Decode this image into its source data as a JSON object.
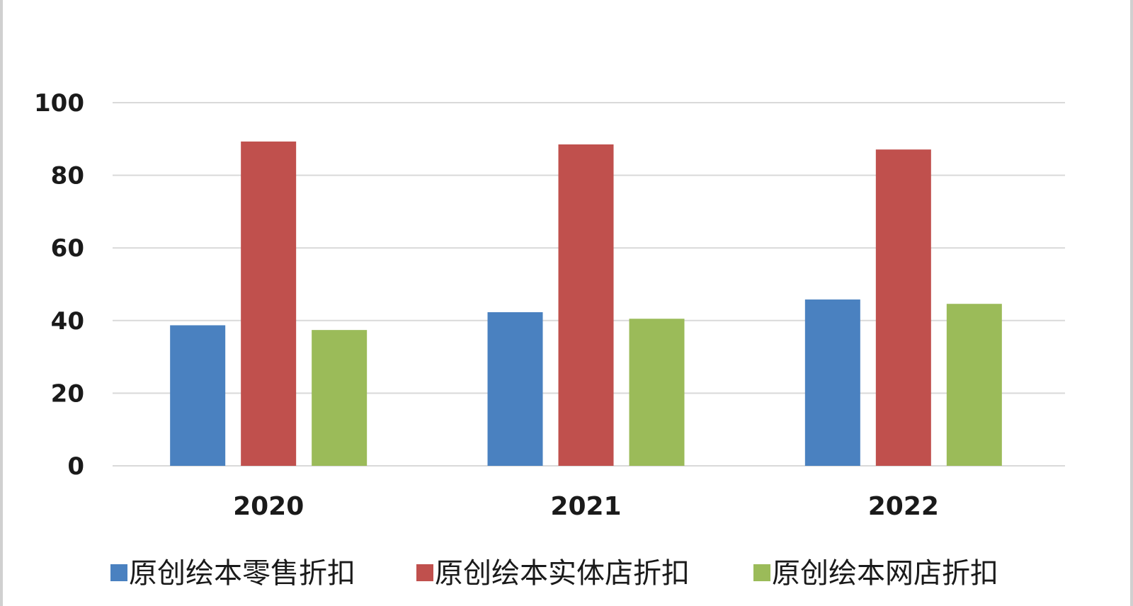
{
  "chart_data": {
    "type": "bar",
    "categories": [
      "2020",
      "2021",
      "2022"
    ],
    "series": [
      {
        "name": "原创绘本零售折扣",
        "color": "#4a81c0",
        "values": [
          38.7,
          42.3,
          45.8
        ]
      },
      {
        "name": "原创绘本实体店折扣",
        "color": "#c0504d",
        "values": [
          89.3,
          88.5,
          87.1
        ]
      },
      {
        "name": "原创绘本网店折扣",
        "color": "#9bbb59",
        "values": [
          37.4,
          40.5,
          44.6
        ]
      }
    ],
    "ylim": [
      0,
      100
    ],
    "yticks": [
      0,
      20,
      40,
      60,
      80,
      100
    ],
    "grid": true,
    "legend_position": "bottom"
  }
}
